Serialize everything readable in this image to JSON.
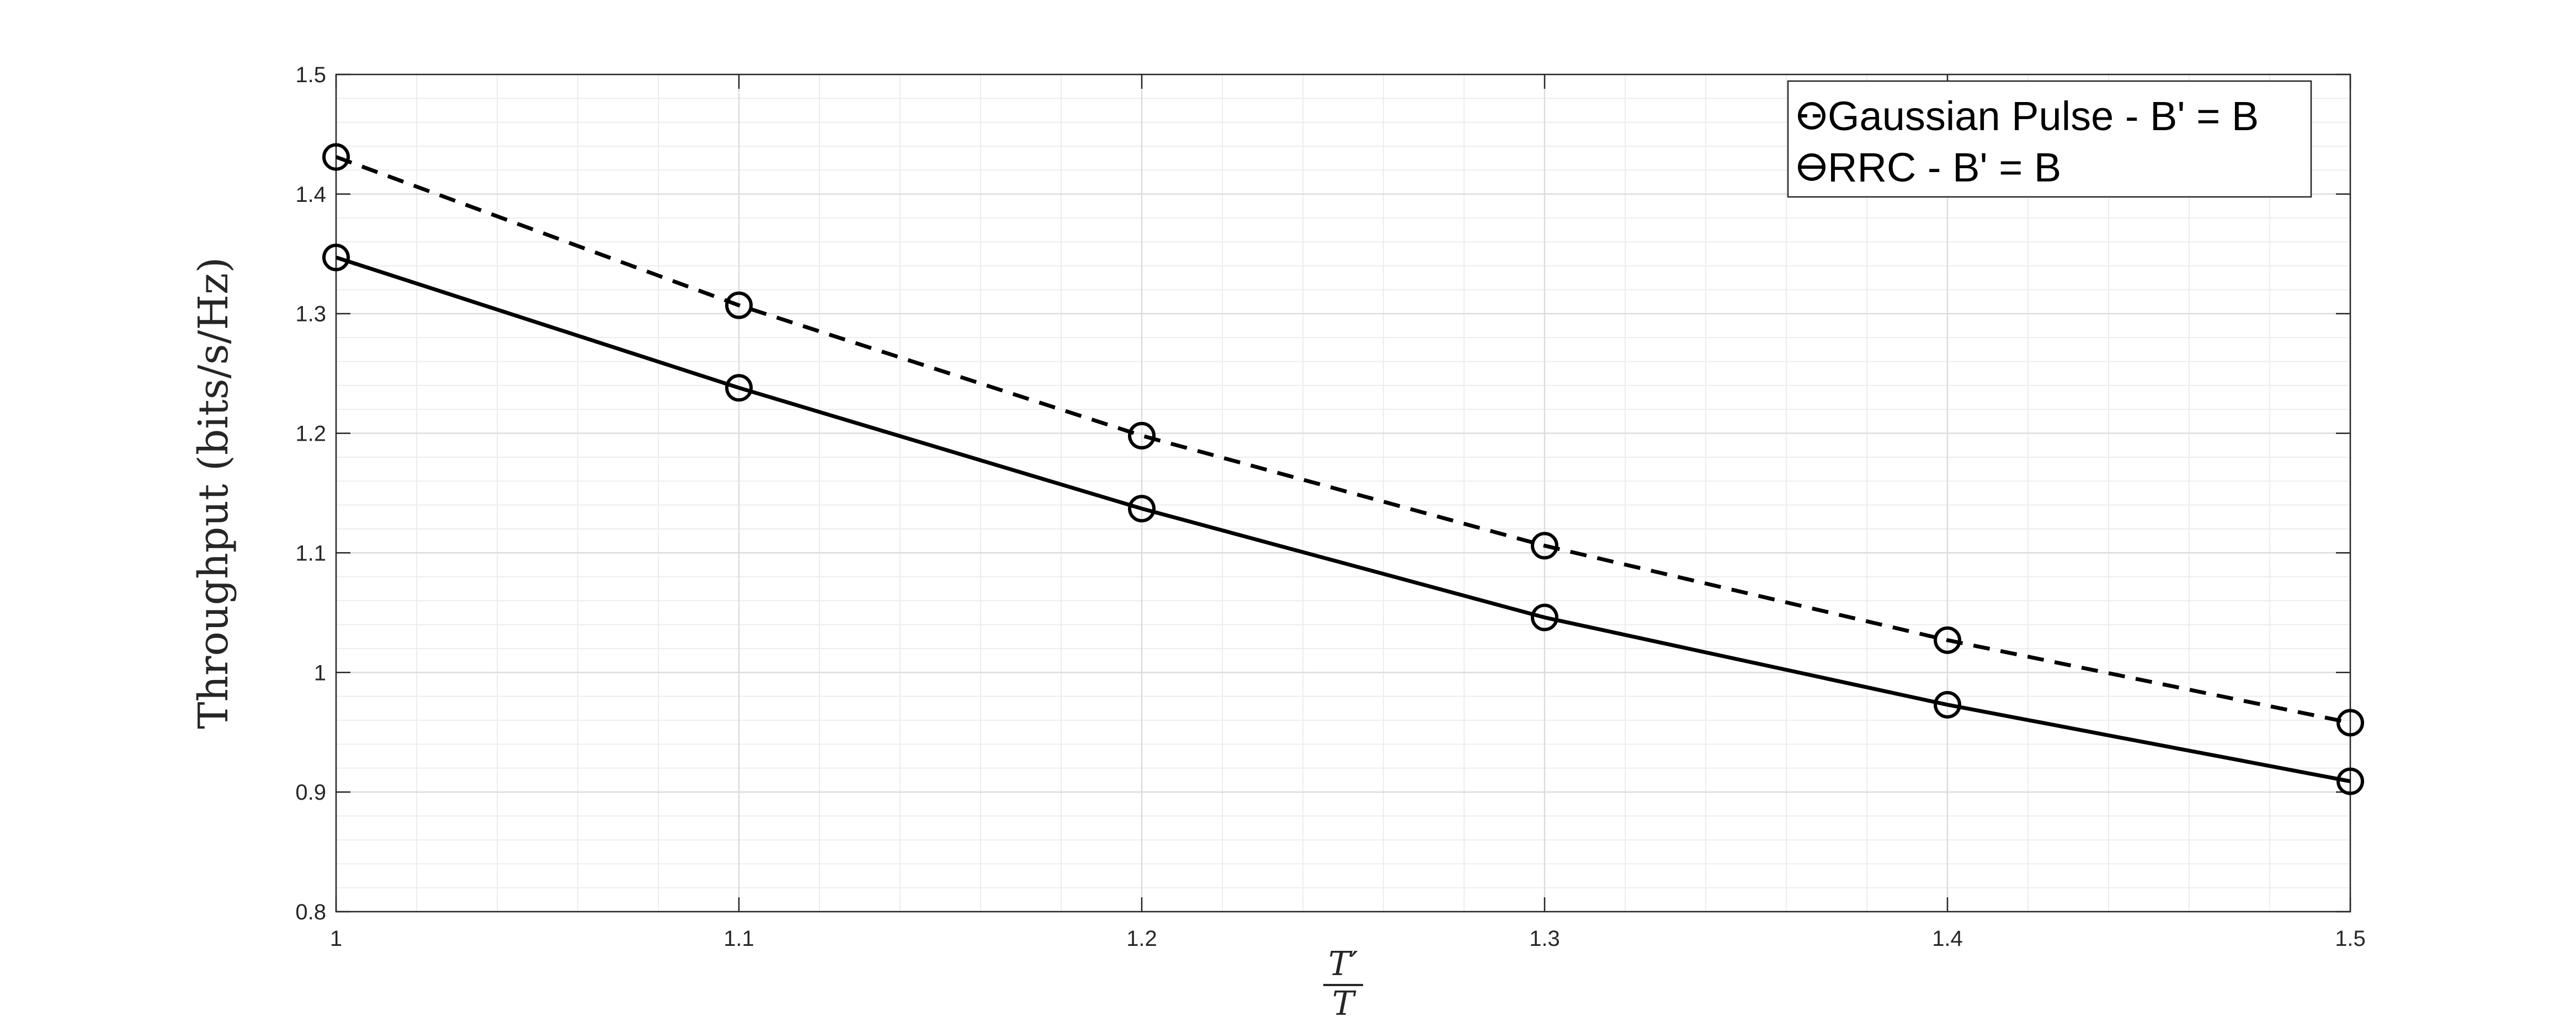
{
  "chart_data": {
    "type": "line",
    "title": "",
    "xlabel": {
      "numerator": "T′",
      "denominator": "T"
    },
    "ylabel": "Throughput (bits/s/Hz)",
    "xlim": [
      1,
      1.5
    ],
    "ylim": [
      0.8,
      1.5
    ],
    "xticks": [
      1,
      1.1,
      1.2,
      1.3,
      1.4,
      1.5
    ],
    "xtick_labels": [
      "1",
      "1.1",
      "1.2",
      "1.3",
      "1.4",
      "1.5"
    ],
    "yticks": [
      0.8,
      0.9,
      1,
      1.1,
      1.2,
      1.3,
      1.4,
      1.5
    ],
    "ytick_labels": [
      "0.8",
      "0.9",
      "1",
      "1.1",
      "1.2",
      "1.3",
      "1.4",
      "1.5"
    ],
    "grid": true,
    "minor_grid": true,
    "legend_position": "top-right",
    "x": [
      1,
      1.1,
      1.2,
      1.3,
      1.4,
      1.5
    ],
    "series": [
      {
        "name": "Gaussian Pulse - B' = B",
        "values": [
          1.431,
          1.307,
          1.198,
          1.106,
          1.027,
          0.958
        ],
        "line_style": "dashed",
        "marker": "circle",
        "color": "#000000"
      },
      {
        "name": "RRC - B' = B",
        "values": [
          1.347,
          1.238,
          1.137,
          1.046,
          0.973,
          0.909
        ],
        "line_style": "solid",
        "marker": "circle",
        "color": "#000000"
      }
    ]
  }
}
